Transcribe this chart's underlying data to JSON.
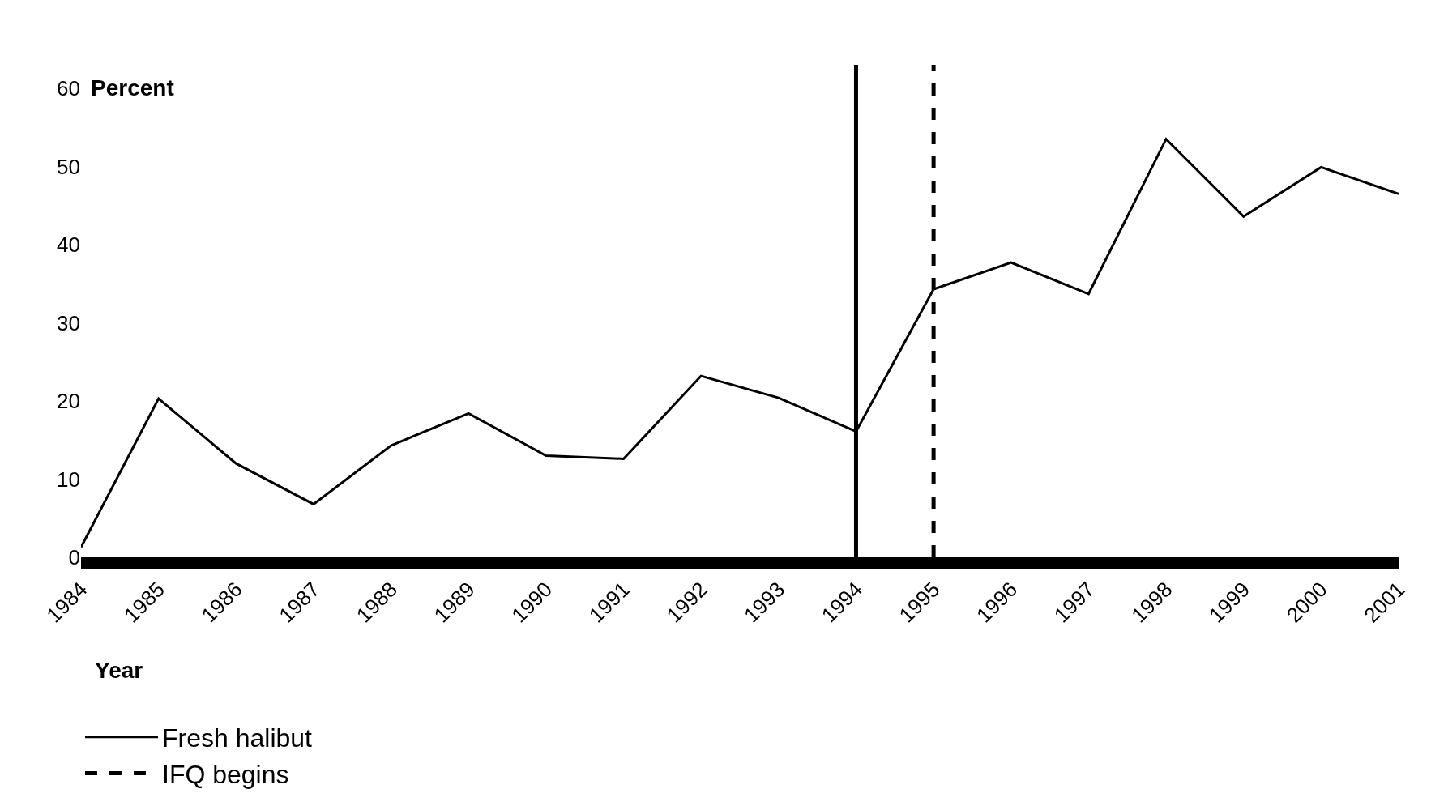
{
  "chart_data": {
    "type": "line",
    "xlabel": "Year",
    "ylabel": "Percent",
    "x": [
      1984,
      1985,
      1986,
      1987,
      1988,
      1989,
      1990,
      1991,
      1992,
      1993,
      1994,
      1995,
      1996,
      1997,
      1998,
      1999,
      2000,
      2001
    ],
    "series": [
      {
        "name": "Fresh halibut",
        "color": "#000000",
        "values": [
          1.3,
          20.3,
          12,
          6.8,
          14.3,
          18.4,
          13,
          12.6,
          23.2,
          20.4,
          16.1,
          34.3,
          37.7,
          33.7,
          53.5,
          43.6,
          49.9,
          46.5
        ]
      }
    ],
    "xlim": [
      1984,
      2001
    ],
    "xticks": [
      1984,
      1985,
      1986,
      1987,
      1988,
      1989,
      1990,
      1991,
      1992,
      1993,
      1994,
      1995,
      1996,
      1997,
      1998,
      1999,
      2000,
      2001
    ],
    "ylim": [
      0,
      63
    ],
    "yticks": [
      0,
      10,
      20,
      30,
      40,
      50,
      60
    ],
    "ref_lines": [
      {
        "axis": "x",
        "value": 1994,
        "color": "#000000",
        "line_style": "solid"
      },
      {
        "axis": "x",
        "value": 1995,
        "label": "IFQ begins",
        "color": "#000000",
        "line_style": "dashed"
      }
    ],
    "legend": "bottom left",
    "marker": "none",
    "line_style": "solid"
  }
}
